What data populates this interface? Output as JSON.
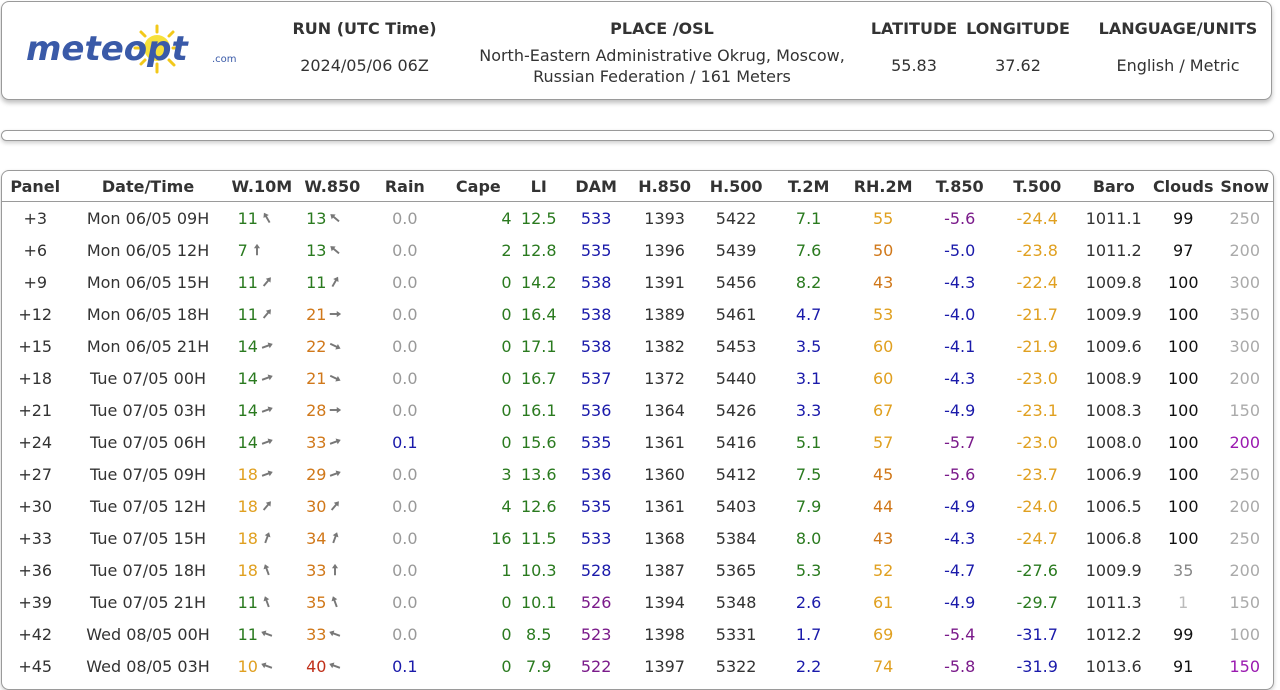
{
  "header": {
    "logo_text": "meteopt",
    "logo_suffix": ".com",
    "run_label": "RUN (UTC Time)",
    "run_value": "2024/05/06 06Z",
    "place_label": "PLACE /OSL",
    "place_line1": "North-Eastern Administrative Okrug, Moscow,",
    "place_line2": "Russian Federation / 161 Meters",
    "lat_label": "LATITUDE",
    "lat_value": "55.83",
    "lon_label": "LONGITUDE",
    "lon_value": "37.62",
    "lang_label": "LANGUAGE/UNITS",
    "lang_value": "English / Metric"
  },
  "columns": [
    "Panel",
    "Date/Time",
    "W.10M",
    "W.850",
    "Rain",
    "Cape",
    "LI",
    "DAM",
    "H.850",
    "H.500",
    "T.2M",
    "RH.2M",
    "T.850",
    "T.500",
    "Baro",
    "Clouds",
    "Snow"
  ],
  "rows": [
    {
      "panel": "+3",
      "dt": "Mon 06/05 09H",
      "w10": "11",
      "w10c": "#2a7a1f",
      "w10a": 150,
      "w850": "13",
      "w850c": "#2a7a1f",
      "w850a": 130,
      "rain": "0.0",
      "rainc": "#999",
      "cape": "4",
      "li": "12.5",
      "dam": "533",
      "damc": "#1a1aaa",
      "h850": "1393",
      "h500": "5422",
      "t2m": "7.1",
      "t2mc": "#2a7a1f",
      "rh": "55",
      "rhc": "#e0a020",
      "t850": "-5.6",
      "t850c": "#7a1a8a",
      "t500": "-24.4",
      "t500c": "#e0a020",
      "baro": "1011.1",
      "clouds": "99",
      "cloudsc": "#111",
      "snow": "250",
      "snowc": "#aaa"
    },
    {
      "panel": "+6",
      "dt": "Mon 06/05 12H",
      "w10": "7",
      "w10c": "#2a7a1f",
      "w10a": 180,
      "w850": "13",
      "w850c": "#2a7a1f",
      "w850a": 130,
      "rain": "0.0",
      "rainc": "#999",
      "cape": "2",
      "li": "12.8",
      "dam": "535",
      "damc": "#1a1aaa",
      "h850": "1396",
      "h500": "5439",
      "t2m": "7.6",
      "t2mc": "#2a7a1f",
      "rh": "50",
      "rhc": "#d0781a",
      "t850": "-5.0",
      "t850c": "#1a1aaa",
      "t500": "-23.8",
      "t500c": "#e0a020",
      "baro": "1011.2",
      "clouds": "97",
      "cloudsc": "#111",
      "snow": "200",
      "snowc": "#aaa"
    },
    {
      "panel": "+9",
      "dt": "Mon 06/05 15H",
      "w10": "11",
      "w10c": "#2a7a1f",
      "w10a": 220,
      "w850": "11",
      "w850c": "#2a7a1f",
      "w850a": 210,
      "rain": "0.0",
      "rainc": "#999",
      "cape": "0",
      "li": "14.2",
      "dam": "538",
      "damc": "#1a1aaa",
      "h850": "1391",
      "h500": "5456",
      "t2m": "8.2",
      "t2mc": "#2a7a1f",
      "rh": "43",
      "rhc": "#d0781a",
      "t850": "-4.3",
      "t850c": "#1a1aaa",
      "t500": "-22.4",
      "t500c": "#e0a020",
      "baro": "1009.8",
      "clouds": "100",
      "cloudsc": "#111",
      "snow": "300",
      "snowc": "#aaa"
    },
    {
      "panel": "+12",
      "dt": "Mon 06/05 18H",
      "w10": "11",
      "w10c": "#2a7a1f",
      "w10a": 220,
      "w850": "21",
      "w850c": "#d0781a",
      "w850a": 270,
      "rain": "0.0",
      "rainc": "#999",
      "cape": "0",
      "li": "16.4",
      "dam": "538",
      "damc": "#1a1aaa",
      "h850": "1389",
      "h500": "5461",
      "t2m": "4.7",
      "t2mc": "#1a1aaa",
      "rh": "53",
      "rhc": "#e0a020",
      "t850": "-4.0",
      "t850c": "#1a1aaa",
      "t500": "-21.7",
      "t500c": "#e0a020",
      "baro": "1009.9",
      "clouds": "100",
      "cloudsc": "#111",
      "snow": "350",
      "snowc": "#aaa"
    },
    {
      "panel": "+15",
      "dt": "Mon 06/05 21H",
      "w10": "14",
      "w10c": "#2a7a1f",
      "w10a": 250,
      "w850": "22",
      "w850c": "#d0781a",
      "w850a": 295,
      "rain": "0.0",
      "rainc": "#999",
      "cape": "0",
      "li": "17.1",
      "dam": "538",
      "damc": "#1a1aaa",
      "h850": "1382",
      "h500": "5453",
      "t2m": "3.5",
      "t2mc": "#1a1aaa",
      "rh": "60",
      "rhc": "#e0a020",
      "t850": "-4.1",
      "t850c": "#1a1aaa",
      "t500": "-21.9",
      "t500c": "#e0a020",
      "baro": "1009.6",
      "clouds": "100",
      "cloudsc": "#111",
      "snow": "300",
      "snowc": "#aaa"
    },
    {
      "panel": "+18",
      "dt": "Tue 07/05 00H",
      "w10": "14",
      "w10c": "#2a7a1f",
      "w10a": 250,
      "w850": "21",
      "w850c": "#d0781a",
      "w850a": 295,
      "rain": "0.0",
      "rainc": "#999",
      "cape": "0",
      "li": "16.7",
      "dam": "537",
      "damc": "#1a1aaa",
      "h850": "1372",
      "h500": "5440",
      "t2m": "3.1",
      "t2mc": "#1a1aaa",
      "rh": "60",
      "rhc": "#e0a020",
      "t850": "-4.3",
      "t850c": "#1a1aaa",
      "t500": "-23.0",
      "t500c": "#e0a020",
      "baro": "1008.9",
      "clouds": "100",
      "cloudsc": "#111",
      "snow": "200",
      "snowc": "#aaa"
    },
    {
      "panel": "+21",
      "dt": "Tue 07/05 03H",
      "w10": "14",
      "w10c": "#2a7a1f",
      "w10a": 250,
      "w850": "28",
      "w850c": "#d0781a",
      "w850a": 270,
      "rain": "0.0",
      "rainc": "#999",
      "cape": "0",
      "li": "16.1",
      "dam": "536",
      "damc": "#1a1aaa",
      "h850": "1364",
      "h500": "5426",
      "t2m": "3.3",
      "t2mc": "#1a1aaa",
      "rh": "67",
      "rhc": "#e0a020",
      "t850": "-4.9",
      "t850c": "#1a1aaa",
      "t500": "-23.1",
      "t500c": "#e0a020",
      "baro": "1008.3",
      "clouds": "100",
      "cloudsc": "#111",
      "snow": "150",
      "snowc": "#aaa"
    },
    {
      "panel": "+24",
      "dt": "Tue 07/05 06H",
      "w10": "14",
      "w10c": "#2a7a1f",
      "w10a": 250,
      "w850": "33",
      "w850c": "#d0781a",
      "w850a": 250,
      "rain": "0.1",
      "rainc": "#1a1aaa",
      "cape": "0",
      "li": "15.6",
      "dam": "535",
      "damc": "#1a1aaa",
      "h850": "1361",
      "h500": "5416",
      "t2m": "5.1",
      "t2mc": "#2a7a1f",
      "rh": "57",
      "rhc": "#e0a020",
      "t850": "-5.7",
      "t850c": "#7a1a8a",
      "t500": "-23.0",
      "t500c": "#e0a020",
      "baro": "1008.0",
      "clouds": "100",
      "cloudsc": "#111",
      "snow": "200",
      "snowc": "#9a1ab0"
    },
    {
      "panel": "+27",
      "dt": "Tue 07/05 09H",
      "w10": "18",
      "w10c": "#e0a020",
      "w10a": 250,
      "w850": "29",
      "w850c": "#d0781a",
      "w850a": 250,
      "rain": "0.0",
      "rainc": "#999",
      "cape": "3",
      "li": "13.6",
      "dam": "536",
      "damc": "#1a1aaa",
      "h850": "1360",
      "h500": "5412",
      "t2m": "7.5",
      "t2mc": "#2a7a1f",
      "rh": "45",
      "rhc": "#d0781a",
      "t850": "-5.6",
      "t850c": "#7a1a8a",
      "t500": "-23.7",
      "t500c": "#e0a020",
      "baro": "1006.9",
      "clouds": "100",
      "cloudsc": "#111",
      "snow": "250",
      "snowc": "#aaa"
    },
    {
      "panel": "+30",
      "dt": "Tue 07/05 12H",
      "w10": "18",
      "w10c": "#e0a020",
      "w10a": 220,
      "w850": "30",
      "w850c": "#d0781a",
      "w850a": 220,
      "rain": "0.0",
      "rainc": "#999",
      "cape": "4",
      "li": "12.6",
      "dam": "535",
      "damc": "#1a1aaa",
      "h850": "1361",
      "h500": "5403",
      "t2m": "7.9",
      "t2mc": "#2a7a1f",
      "rh": "44",
      "rhc": "#d0781a",
      "t850": "-4.9",
      "t850c": "#1a1aaa",
      "t500": "-24.0",
      "t500c": "#e0a020",
      "baro": "1006.5",
      "clouds": "100",
      "cloudsc": "#111",
      "snow": "200",
      "snowc": "#aaa"
    },
    {
      "panel": "+33",
      "dt": "Tue 07/05 15H",
      "w10": "18",
      "w10c": "#e0a020",
      "w10a": 200,
      "w850": "34",
      "w850c": "#d0781a",
      "w850a": 200,
      "rain": "0.0",
      "rainc": "#999",
      "cape": "16",
      "li": "11.5",
      "dam": "533",
      "damc": "#1a1aaa",
      "h850": "1368",
      "h500": "5384",
      "t2m": "8.0",
      "t2mc": "#2a7a1f",
      "rh": "43",
      "rhc": "#d0781a",
      "t850": "-4.3",
      "t850c": "#1a1aaa",
      "t500": "-24.7",
      "t500c": "#e0a020",
      "baro": "1006.8",
      "clouds": "100",
      "cloudsc": "#111",
      "snow": "250",
      "snowc": "#aaa"
    },
    {
      "panel": "+36",
      "dt": "Tue 07/05 18H",
      "w10": "18",
      "w10c": "#e0a020",
      "w10a": 160,
      "w850": "33",
      "w850c": "#d0781a",
      "w850a": 180,
      "rain": "0.0",
      "rainc": "#999",
      "cape": "1",
      "li": "10.3",
      "dam": "528",
      "damc": "#1a1aaa",
      "h850": "1387",
      "h500": "5365",
      "t2m": "5.3",
      "t2mc": "#2a7a1f",
      "rh": "52",
      "rhc": "#e0a020",
      "t850": "-4.7",
      "t850c": "#1a1aaa",
      "t500": "-27.6",
      "t500c": "#2a7a1f",
      "baro": "1009.9",
      "clouds": "35",
      "cloudsc": "#888",
      "snow": "200",
      "snowc": "#aaa"
    },
    {
      "panel": "+39",
      "dt": "Tue 07/05 21H",
      "w10": "11",
      "w10c": "#2a7a1f",
      "w10a": 160,
      "w850": "35",
      "w850c": "#d0781a",
      "w850a": 160,
      "rain": "0.0",
      "rainc": "#999",
      "cape": "0",
      "li": "10.1",
      "dam": "526",
      "damc": "#7a1a8a",
      "h850": "1394",
      "h500": "5348",
      "t2m": "2.6",
      "t2mc": "#1a1aaa",
      "rh": "61",
      "rhc": "#e0a020",
      "t850": "-4.9",
      "t850c": "#1a1aaa",
      "t500": "-29.7",
      "t500c": "#2a7a1f",
      "baro": "1011.3",
      "clouds": "1",
      "cloudsc": "#bbb",
      "snow": "150",
      "snowc": "#aaa"
    },
    {
      "panel": "+42",
      "dt": "Wed 08/05 00H",
      "w10": "11",
      "w10c": "#2a7a1f",
      "w10a": 110,
      "w850": "33",
      "w850c": "#d0781a",
      "w850a": 110,
      "rain": "0.0",
      "rainc": "#999",
      "cape": "0",
      "li": "8.5",
      "dam": "523",
      "damc": "#7a1a8a",
      "h850": "1398",
      "h500": "5331",
      "t2m": "1.7",
      "t2mc": "#1a1aaa",
      "rh": "69",
      "rhc": "#e0a020",
      "t850": "-5.4",
      "t850c": "#7a1a8a",
      "t500": "-31.7",
      "t500c": "#1a1aaa",
      "baro": "1012.2",
      "clouds": "99",
      "cloudsc": "#111",
      "snow": "100",
      "snowc": "#aaa"
    },
    {
      "panel": "+45",
      "dt": "Wed 08/05 03H",
      "w10": "10",
      "w10c": "#e0a020",
      "w10a": 110,
      "w850": "40",
      "w850c": "#c0301a",
      "w850a": 110,
      "rain": "0.1",
      "rainc": "#1a1aaa",
      "cape": "0",
      "li": "7.9",
      "dam": "522",
      "damc": "#7a1a8a",
      "h850": "1397",
      "h500": "5322",
      "t2m": "2.2",
      "t2mc": "#1a1aaa",
      "rh": "74",
      "rhc": "#e0a020",
      "t850": "-5.8",
      "t850c": "#7a1a8a",
      "t500": "-31.9",
      "t500c": "#1a1aaa",
      "baro": "1013.6",
      "clouds": "91",
      "cloudsc": "#111",
      "snow": "150",
      "snowc": "#9a1ab0"
    }
  ]
}
